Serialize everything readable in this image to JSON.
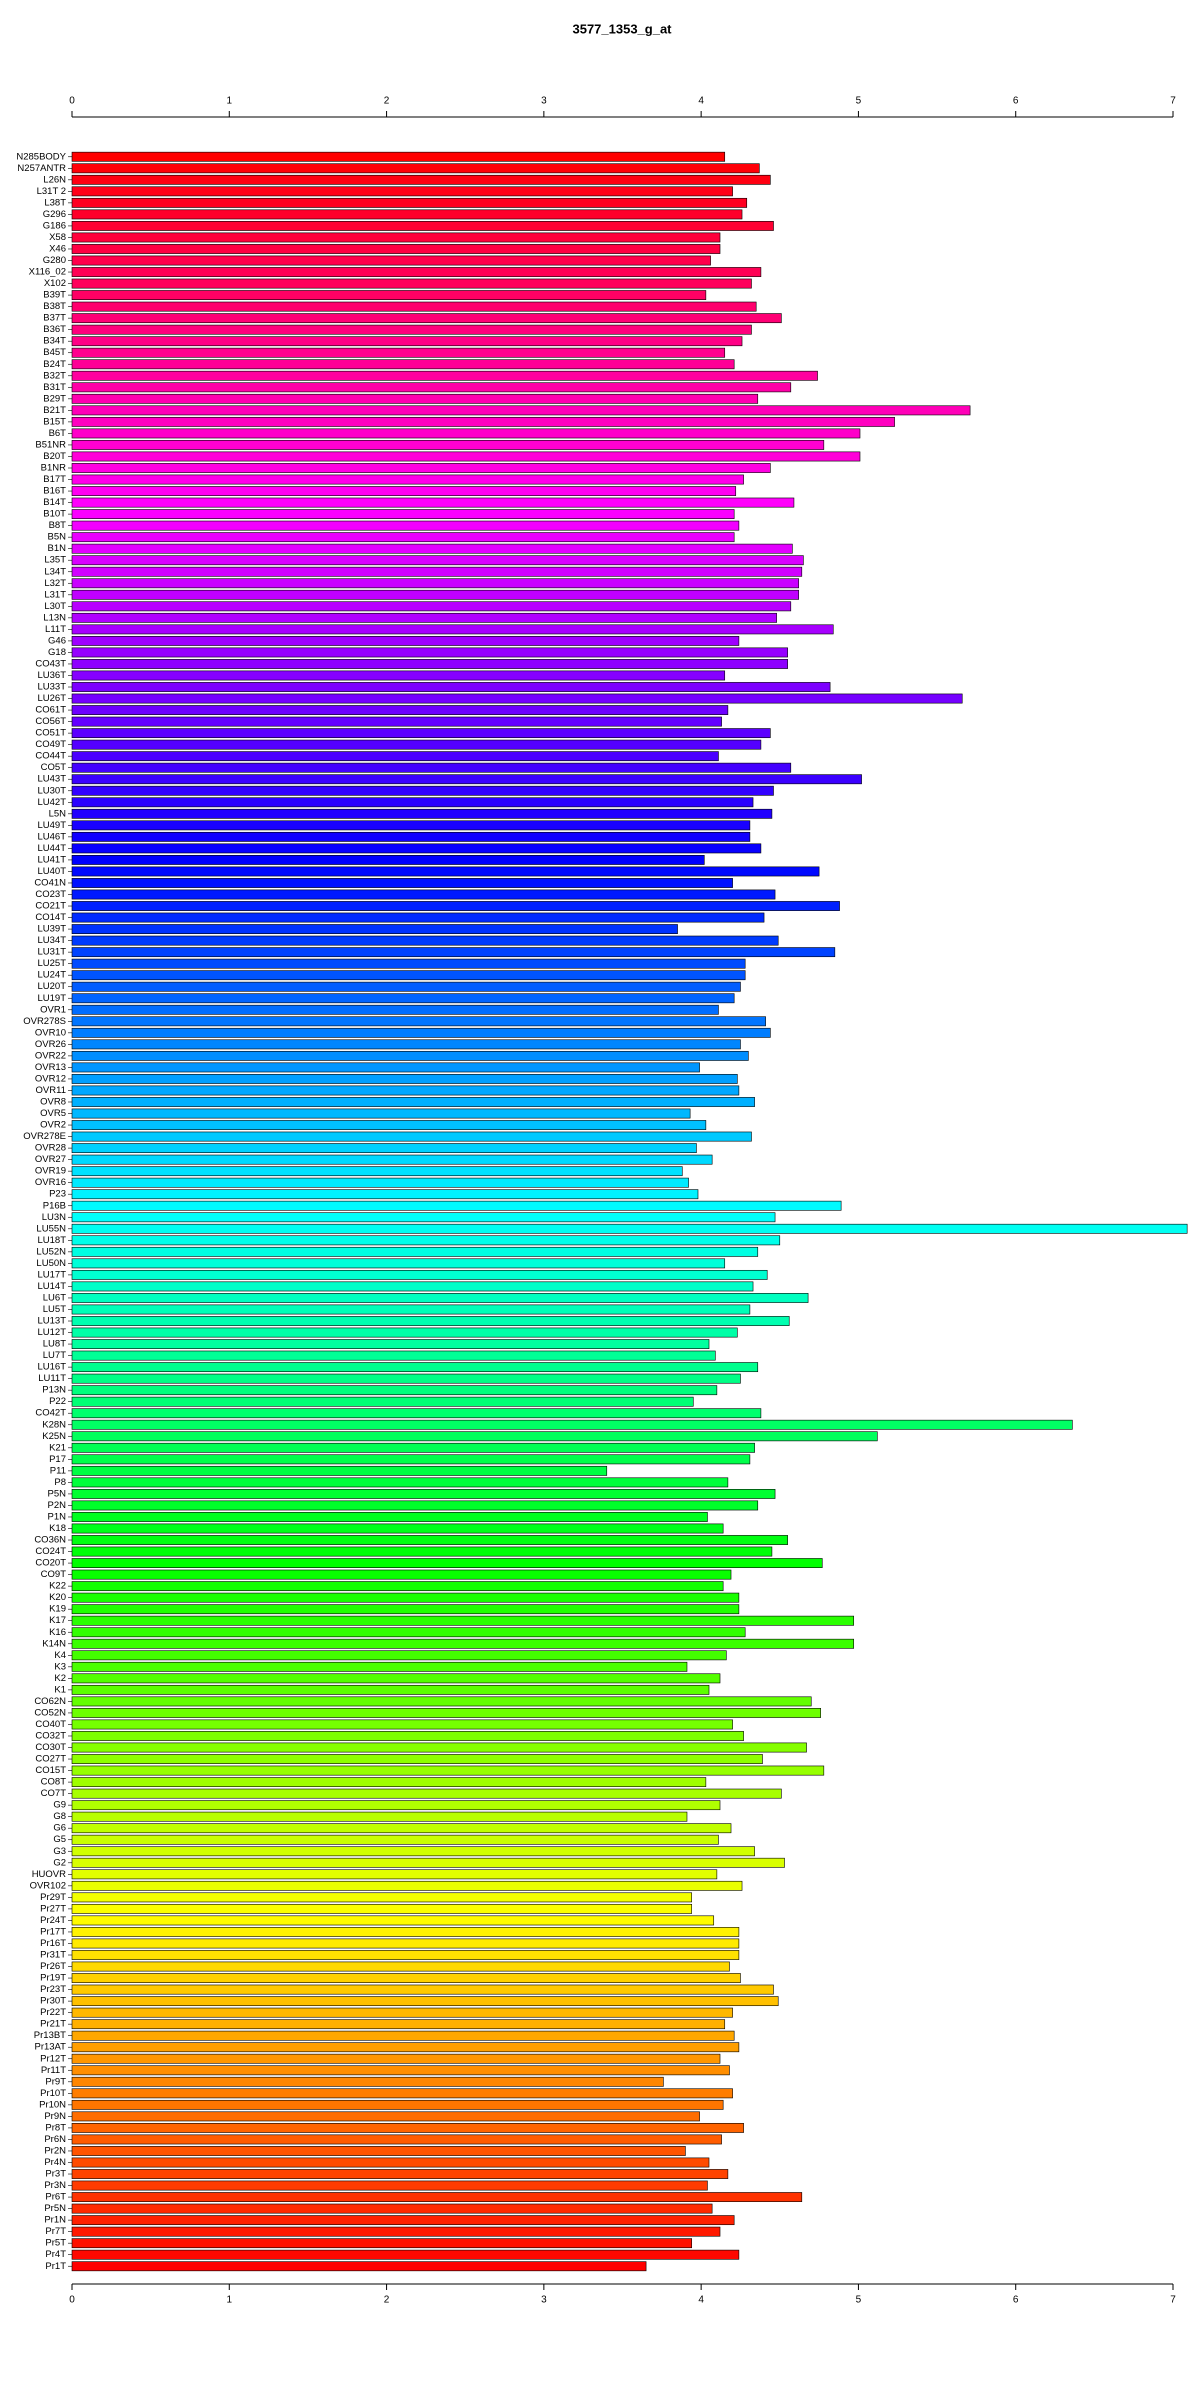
{
  "chart_data": {
    "type": "barh",
    "title": "3577_1353_g_at",
    "categories": [
      "N285BODY",
      "N257ANTR",
      "L26N",
      "L31T 2",
      "L38T",
      "G296",
      "G186",
      "X58",
      "X46",
      "G280",
      "X116_02",
      "X102",
      "B39T",
      "B38T",
      "B37T",
      "B36T",
      "B34T",
      "B45T",
      "B24T",
      "B32T",
      "B31T",
      "B29T",
      "B21T",
      "B15T",
      "B6T",
      "B51NR",
      "B20T",
      "B1NR",
      "B17T",
      "B16T",
      "B14T",
      "B10T",
      "B8T",
      "B5N",
      "B1N",
      "L35T",
      "L34T",
      "L32T",
      "L31T",
      "L30T",
      "L13N",
      "L11T",
      "G46",
      "G18",
      "CO43T",
      "LU36T",
      "LU33T",
      "LU26T",
      "CO61T",
      "CO56T",
      "CO51T",
      "CO49T",
      "CO44T",
      "CO5T",
      "LU43T",
      "LU30T",
      "LU42T",
      "L5N",
      "LU49T",
      "LU46T",
      "LU44T",
      "LU41T",
      "LU40T",
      "CO41N",
      "CO23T",
      "CO21T",
      "CO14T",
      "LU39T",
      "LU34T",
      "LU31T",
      "LU25T",
      "LU24T",
      "LU20T",
      "LU19T",
      "OVR1",
      "OVR278S",
      "OVR10",
      "OVR26",
      "OVR22",
      "OVR13",
      "OVR12",
      "OVR11",
      "OVR8",
      "OVR5",
      "OVR2",
      "OVR278E",
      "OVR28",
      "OVR27",
      "OVR19",
      "OVR16",
      "P23",
      "P16B",
      "LU3N",
      "LU55N",
      "LU18T",
      "LU52N",
      "LU50N",
      "LU17T",
      "LU14T",
      "LU6T",
      "LU5T",
      "LU13T",
      "LU12T",
      "LU8T",
      "LU7T",
      "LU16T",
      "LU11T",
      "P13N",
      "P22",
      "CO42T",
      "K28N",
      "K25N",
      "K21",
      "P17",
      "P11",
      "P8",
      "P5N",
      "P2N",
      "P1N",
      "K18",
      "CO36N",
      "CO24T",
      "CO20T",
      "CO9T",
      "K22",
      "K20",
      "K19",
      "K17",
      "K16",
      "K14N",
      "K4",
      "K3",
      "K2",
      "K1",
      "CO62N",
      "CO52N",
      "CO40T",
      "CO32T",
      "CO30T",
      "CO27T",
      "CO15T",
      "CO8T",
      "CO7T",
      "G9",
      "G8",
      "G6",
      "G5",
      "G3",
      "G2",
      "HUOVR",
      "OVR102",
      "Pr29T",
      "Pr27T",
      "Pr24T",
      "Pr17T",
      "Pr16T",
      "Pr31T",
      "Pr26T",
      "Pr19T",
      "Pr23T",
      "Pr30T",
      "Pr22T",
      "Pr21T",
      "Pr13BT",
      "Pr13AT",
      "Pr12T",
      "Pr11T",
      "Pr9T",
      "Pr10T",
      "Pr10N",
      "Pr9N",
      "Pr8T",
      "Pr6N",
      "Pr2N",
      "Pr4N",
      "Pr3T",
      "Pr3N",
      "Pr6T",
      "Pr5N",
      "Pr1N",
      "Pr7T",
      "Pr5T",
      "Pr4T",
      "Pr1T"
    ],
    "values": [
      4.15,
      4.37,
      4.44,
      4.2,
      4.29,
      4.26,
      4.46,
      4.12,
      4.12,
      4.06,
      4.38,
      4.32,
      4.03,
      4.35,
      4.51,
      4.32,
      4.26,
      4.15,
      4.21,
      4.74,
      4.57,
      4.36,
      5.71,
      5.23,
      5.01,
      4.78,
      5.01,
      4.44,
      4.27,
      4.22,
      4.59,
      4.21,
      4.24,
      4.21,
      4.58,
      4.65,
      4.64,
      4.62,
      4.62,
      4.57,
      4.48,
      4.84,
      4.24,
      4.55,
      4.55,
      4.15,
      4.82,
      5.66,
      4.17,
      4.13,
      4.44,
      4.38,
      4.11,
      4.57,
      5.02,
      4.46,
      4.33,
      4.45,
      4.31,
      4.31,
      4.38,
      4.02,
      4.75,
      4.2,
      4.47,
      4.88,
      4.4,
      3.85,
      4.49,
      4.85,
      4.28,
      4.28,
      4.25,
      4.21,
      4.11,
      4.41,
      4.44,
      4.25,
      4.3,
      3.99,
      4.23,
      4.24,
      4.34,
      3.93,
      4.03,
      4.32,
      3.97,
      4.07,
      3.88,
      3.92,
      3.98,
      4.89,
      4.47,
      7.09,
      4.5,
      4.36,
      4.15,
      4.42,
      4.33,
      4.68,
      4.31,
      4.56,
      4.23,
      4.05,
      4.09,
      4.36,
      4.25,
      4.1,
      3.95,
      4.38,
      6.36,
      5.12,
      4.34,
      4.31,
      3.4,
      4.17,
      4.47,
      4.36,
      4.04,
      4.14,
      4.55,
      4.45,
      4.77,
      4.19,
      4.14,
      4.24,
      4.24,
      4.97,
      4.28,
      4.97,
      4.16,
      3.91,
      4.12,
      4.05,
      4.7,
      4.76,
      4.2,
      4.27,
      4.67,
      4.39,
      4.78,
      4.03,
      4.51,
      4.12,
      3.91,
      4.19,
      4.11,
      4.34,
      4.53,
      4.1,
      4.26,
      3.94,
      3.94,
      4.08,
      4.24,
      4.24,
      4.24,
      4.18,
      4.25,
      4.46,
      4.49,
      4.2,
      4.15,
      4.21,
      4.24,
      4.12,
      4.18,
      3.76,
      4.2,
      4.14,
      3.99,
      4.27,
      4.13,
      3.9,
      4.05,
      4.17,
      4.04,
      4.64,
      4.07,
      4.21,
      4.12,
      3.94,
      4.24,
      3.65
    ],
    "colors": [
      "#ff0000",
      "#ff00ff",
      "#0000ff",
      "#00ffff",
      "#00ff00",
      "#ffff00",
      "#ff0000"
    ],
    "xlim": [
      0,
      7
    ],
    "xticks": [
      0,
      1,
      2,
      3,
      4,
      5,
      6,
      7
    ]
  }
}
